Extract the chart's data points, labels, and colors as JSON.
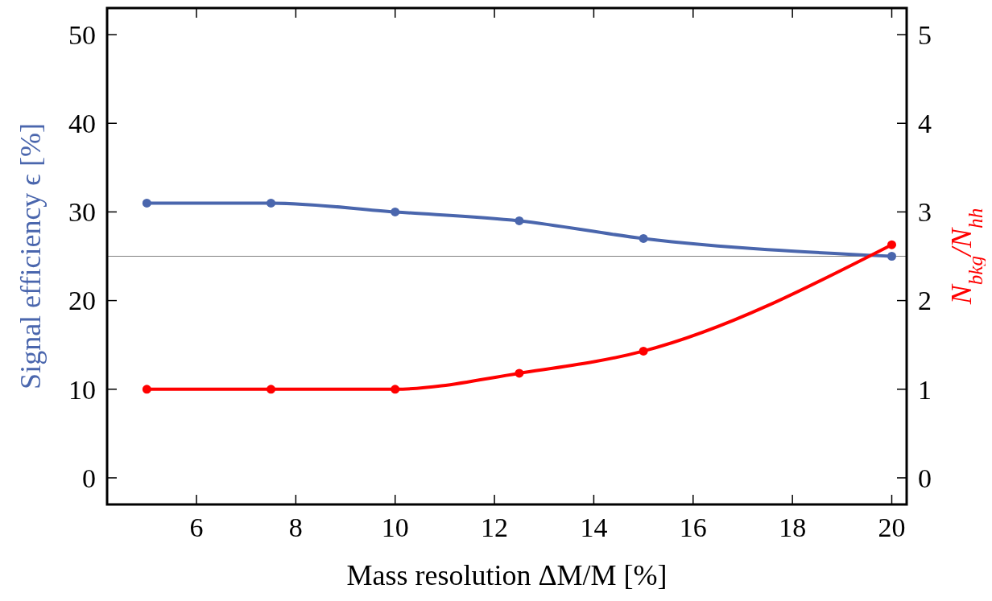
{
  "chart_data": {
    "type": "line",
    "xlabel": "Mass resolution ΔM/M  [%]",
    "ylabel": "Signal efficiency ϵ  [%]",
    "y2label": "N$_{bkg}$/N$_{hh}$",
    "x": [
      5,
      7.5,
      10,
      12.5,
      15,
      20
    ],
    "xlim": [
      4.2,
      20.3
    ],
    "xticks": [
      6,
      8,
      10,
      12,
      14,
      16,
      18,
      20
    ],
    "ylim": [
      -3,
      53
    ],
    "yticks": [
      0,
      10,
      20,
      30,
      40,
      50
    ],
    "y2lim": [
      -0.3,
      5.3
    ],
    "y2ticks": [
      0,
      1,
      2,
      3,
      4,
      5
    ],
    "series": [
      {
        "color": "#4a66ad",
        "values": [
          31,
          31,
          30,
          29,
          27,
          25
        ]
      },
      {
        "color": "#ff0000",
        "values": [
          1,
          1,
          1,
          1.18,
          1.43,
          2.63
        ],
        "axis": "y2"
      }
    ],
    "ref_lines": [
      {
        "axis": "y",
        "value": 25,
        "color": "#808080"
      }
    ],
    "marker": "circle",
    "line_style": "solid",
    "grid": false
  }
}
